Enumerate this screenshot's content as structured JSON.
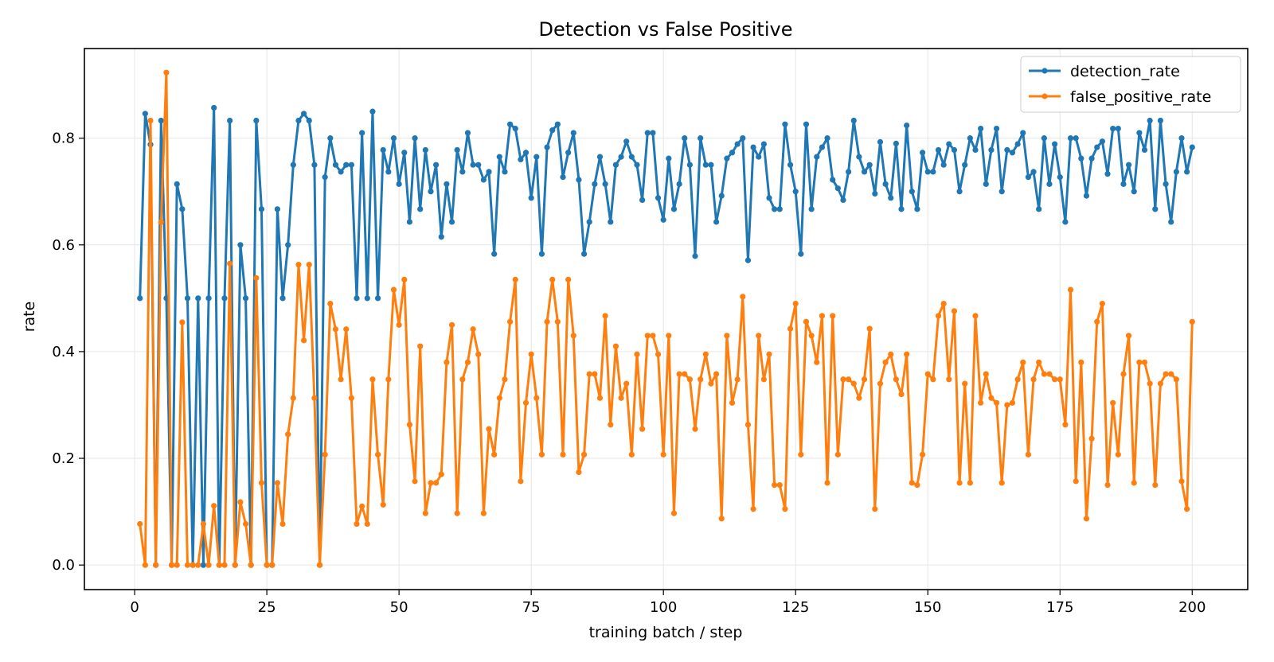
{
  "chart_data": {
    "type": "line",
    "title": "Detection vs False Positive",
    "xlabel": "training batch / step",
    "ylabel": "rate",
    "xlim": [
      -9.5,
      210.5
    ],
    "ylim": [
      -0.046,
      0.968
    ],
    "xticks": [
      0,
      25,
      50,
      75,
      100,
      125,
      150,
      175,
      200
    ],
    "xtick_labels": [
      "0",
      "25",
      "50",
      "75",
      "100",
      "125",
      "150",
      "175",
      "200"
    ],
    "yticks": [
      0.0,
      0.2,
      0.4,
      0.6,
      0.8
    ],
    "ytick_labels": [
      "0.0",
      "0.2",
      "0.4",
      "0.6",
      "0.8"
    ],
    "grid": true,
    "legend_position": "top-right",
    "series": [
      {
        "name": "detection_rate",
        "color": "#1f77b4",
        "x": [
          1,
          2,
          3,
          4,
          5,
          6,
          7,
          8,
          9,
          10,
          11,
          12,
          13,
          14,
          15,
          16,
          17,
          18,
          19,
          20,
          21,
          22,
          23,
          24,
          25,
          26,
          27,
          28,
          29,
          30,
          31,
          32,
          33,
          34,
          35,
          36,
          37,
          38,
          39,
          40,
          41,
          42,
          43,
          44,
          45,
          46,
          47,
          48,
          49,
          50,
          51,
          52,
          53,
          54,
          55,
          56,
          57,
          58,
          59,
          60,
          61,
          62,
          63,
          64,
          65,
          66,
          67,
          68,
          69,
          70,
          71,
          72,
          73,
          74,
          75,
          76,
          77,
          78,
          79,
          80,
          81,
          82,
          83,
          84,
          85,
          86,
          87,
          88,
          89,
          90,
          91,
          92,
          93,
          94,
          95,
          96,
          97,
          98,
          99,
          100,
          101,
          102,
          103,
          104,
          105,
          106,
          107,
          108,
          109,
          110,
          111,
          112,
          113,
          114,
          115,
          116,
          117,
          118,
          119,
          120,
          121,
          122,
          123,
          124,
          125,
          126,
          127,
          128,
          129,
          130,
          131,
          132,
          133,
          134,
          135,
          136,
          137,
          138,
          139,
          140,
          141,
          142,
          143,
          144,
          145,
          146,
          147,
          148,
          149,
          150,
          151,
          152,
          153,
          154,
          155,
          156,
          157,
          158,
          159,
          160,
          161,
          162,
          163,
          164,
          165,
          166,
          167,
          168,
          169,
          170,
          171,
          172,
          173,
          174,
          175,
          176,
          177,
          178,
          179,
          180,
          181,
          182,
          183,
          184,
          185,
          186,
          187,
          188,
          189,
          190,
          191,
          192,
          193,
          194,
          195,
          196,
          197,
          198,
          199,
          200
        ],
        "values": [
          0.5,
          0.846,
          0.788,
          0.0,
          0.833,
          0.5,
          0.0,
          0.714,
          0.667,
          0.5,
          0.0,
          0.5,
          0.0,
          0.5,
          0.857,
          0.0,
          0.5,
          0.833,
          0.0,
          0.6,
          0.5,
          0.0,
          0.833,
          0.667,
          0.0,
          0.0,
          0.667,
          0.5,
          0.6,
          0.75,
          0.833,
          0.846,
          0.833,
          0.75,
          0.0,
          0.727,
          0.8,
          0.75,
          0.737,
          0.75,
          0.75,
          0.5,
          0.81,
          0.5,
          0.85,
          0.5,
          0.778,
          0.737,
          0.8,
          0.714,
          0.773,
          0.643,
          0.8,
          0.667,
          0.778,
          0.7,
          0.75,
          0.615,
          0.714,
          0.643,
          0.778,
          0.737,
          0.81,
          0.75,
          0.75,
          0.722,
          0.737,
          0.583,
          0.765,
          0.737,
          0.826,
          0.818,
          0.76,
          0.773,
          0.688,
          0.765,
          0.583,
          0.783,
          0.815,
          0.826,
          0.727,
          0.773,
          0.81,
          0.722,
          0.583,
          0.643,
          0.714,
          0.765,
          0.714,
          0.643,
          0.75,
          0.765,
          0.794,
          0.765,
          0.75,
          0.684,
          0.81,
          0.81,
          0.688,
          0.647,
          0.762,
          0.667,
          0.714,
          0.8,
          0.75,
          0.579,
          0.8,
          0.75,
          0.75,
          0.643,
          0.692,
          0.762,
          0.773,
          0.789,
          0.8,
          0.571,
          0.783,
          0.765,
          0.789,
          0.688,
          0.667,
          0.667,
          0.826,
          0.75,
          0.7,
          0.583,
          0.826,
          0.667,
          0.765,
          0.783,
          0.8,
          0.722,
          0.706,
          0.684,
          0.737,
          0.833,
          0.765,
          0.737,
          0.75,
          0.696,
          0.793,
          0.714,
          0.688,
          0.79,
          0.667,
          0.824,
          0.7,
          0.667,
          0.773,
          0.737,
          0.737,
          0.778,
          0.75,
          0.789,
          0.778,
          0.7,
          0.75,
          0.8,
          0.778,
          0.818,
          0.714,
          0.778,
          0.818,
          0.7,
          0.778,
          0.773,
          0.789,
          0.81,
          0.727,
          0.737,
          0.667,
          0.8,
          0.714,
          0.789,
          0.727,
          0.643,
          0.8,
          0.8,
          0.762,
          0.692,
          0.762,
          0.783,
          0.794,
          0.733,
          0.818,
          0.818,
          0.714,
          0.75,
          0.7,
          0.81,
          0.778,
          0.833,
          0.667,
          0.833,
          0.714,
          0.643,
          0.737,
          0.8,
          0.737,
          0.783
        ]
      },
      {
        "name": "false_positive_rate",
        "color": "#ff7f0e",
        "x": [
          1,
          2,
          3,
          4,
          5,
          6,
          7,
          8,
          9,
          10,
          11,
          12,
          13,
          14,
          15,
          16,
          17,
          18,
          19,
          20,
          21,
          22,
          23,
          24,
          25,
          26,
          27,
          28,
          29,
          30,
          31,
          32,
          33,
          34,
          35,
          36,
          37,
          38,
          39,
          40,
          41,
          42,
          43,
          44,
          45,
          46,
          47,
          48,
          49,
          50,
          51,
          52,
          53,
          54,
          55,
          56,
          57,
          58,
          59,
          60,
          61,
          62,
          63,
          64,
          65,
          66,
          67,
          68,
          69,
          70,
          71,
          72,
          73,
          74,
          75,
          76,
          77,
          78,
          79,
          80,
          81,
          82,
          83,
          84,
          85,
          86,
          87,
          88,
          89,
          90,
          91,
          92,
          93,
          94,
          95,
          96,
          97,
          98,
          99,
          100,
          101,
          102,
          103,
          104,
          105,
          106,
          107,
          108,
          109,
          110,
          111,
          112,
          113,
          114,
          115,
          116,
          117,
          118,
          119,
          120,
          121,
          122,
          123,
          124,
          125,
          126,
          127,
          128,
          129,
          130,
          131,
          132,
          133,
          134,
          135,
          136,
          137,
          138,
          139,
          140,
          141,
          142,
          143,
          144,
          145,
          146,
          147,
          148,
          149,
          150,
          151,
          152,
          153,
          154,
          155,
          156,
          157,
          158,
          159,
          160,
          161,
          162,
          163,
          164,
          165,
          166,
          167,
          168,
          169,
          170,
          171,
          172,
          173,
          174,
          175,
          176,
          177,
          178,
          179,
          180,
          181,
          182,
          183,
          184,
          185,
          186,
          187,
          188,
          189,
          190,
          191,
          192,
          193,
          194,
          195,
          196,
          197,
          198,
          199,
          200
        ],
        "values": [
          0.077,
          0.0,
          0.833,
          0.0,
          0.643,
          0.923,
          0.0,
          0.0,
          0.455,
          0.0,
          0.0,
          0.0,
          0.077,
          0.0,
          0.111,
          0.0,
          0.0,
          0.565,
          0.0,
          0.118,
          0.077,
          0.0,
          0.538,
          0.154,
          0.0,
          0.0,
          0.154,
          0.077,
          0.245,
          0.313,
          0.563,
          0.421,
          0.563,
          0.313,
          0.0,
          0.207,
          0.49,
          0.442,
          0.348,
          0.442,
          0.313,
          0.077,
          0.11,
          0.077,
          0.348,
          0.207,
          0.113,
          0.348,
          0.516,
          0.45,
          0.535,
          0.263,
          0.157,
          0.41,
          0.097,
          0.154,
          0.154,
          0.17,
          0.38,
          0.45,
          0.097,
          0.348,
          0.38,
          0.442,
          0.395,
          0.097,
          0.255,
          0.207,
          0.313,
          0.348,
          0.456,
          0.535,
          0.157,
          0.304,
          0.395,
          0.313,
          0.207,
          0.456,
          0.535,
          0.456,
          0.207,
          0.535,
          0.43,
          0.174,
          0.207,
          0.358,
          0.358,
          0.313,
          0.467,
          0.263,
          0.41,
          0.313,
          0.34,
          0.207,
          0.395,
          0.255,
          0.43,
          0.43,
          0.395,
          0.207,
          0.43,
          0.097,
          0.358,
          0.358,
          0.348,
          0.255,
          0.348,
          0.395,
          0.34,
          0.358,
          0.087,
          0.43,
          0.304,
          0.348,
          0.503,
          0.263,
          0.105,
          0.43,
          0.348,
          0.395,
          0.15,
          0.15,
          0.105,
          0.443,
          0.49,
          0.207,
          0.456,
          0.43,
          0.38,
          0.467,
          0.154,
          0.467,
          0.207,
          0.348,
          0.348,
          0.34,
          0.313,
          0.348,
          0.443,
          0.105,
          0.34,
          0.38,
          0.395,
          0.348,
          0.32,
          0.395,
          0.154,
          0.15,
          0.207,
          0.358,
          0.348,
          0.467,
          0.49,
          0.348,
          0.476,
          0.154,
          0.34,
          0.154,
          0.467,
          0.304,
          0.358,
          0.313,
          0.304,
          0.154,
          0.3,
          0.304,
          0.348,
          0.38,
          0.207,
          0.348,
          0.38,
          0.358,
          0.358,
          0.348,
          0.348,
          0.263,
          0.516,
          0.157,
          0.38,
          0.087,
          0.237,
          0.456,
          0.49,
          0.15,
          0.304,
          0.207,
          0.358,
          0.43,
          0.154,
          0.38,
          0.38,
          0.34,
          0.15,
          0.34,
          0.358,
          0.358,
          0.348,
          0.157,
          0.105,
          0.456
        ]
      }
    ]
  }
}
